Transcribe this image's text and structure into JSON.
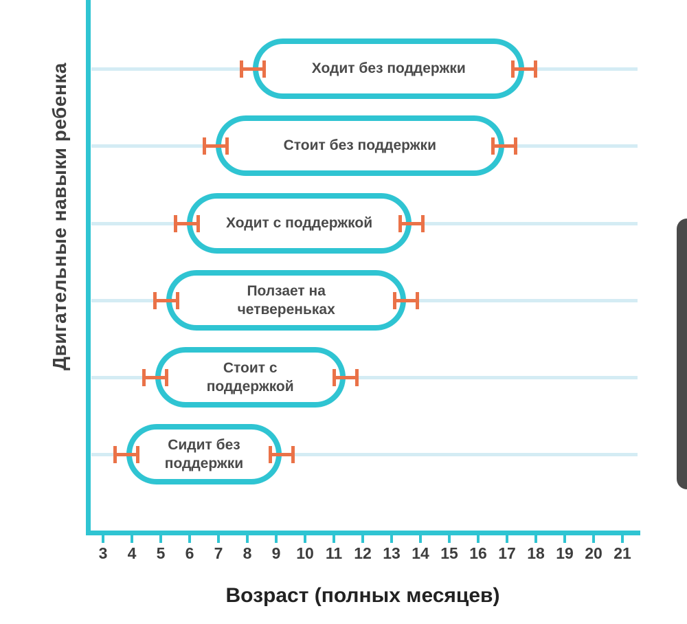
{
  "colors": {
    "axis_teal": "#2fc4d2",
    "pill_border_teal": "#2fc4d2",
    "marker_orange": "#ea7248",
    "gridline_blue": "#d4ecf4",
    "label_gray": "#4a4a4a",
    "axis_title_dark": "#222222",
    "scroll_thumb_gray": "#4a4a4a"
  },
  "chart_data": {
    "type": "bar",
    "subtype": "horizontal milestone range chart with error-bar end markers",
    "title": "",
    "xlabel": "Возраст (полных месяцев)",
    "ylabel": "Двигательные навыки ребенка",
    "xlim": [
      3,
      21
    ],
    "x_ticks": [
      3,
      4,
      5,
      6,
      7,
      8,
      9,
      10,
      11,
      12,
      13,
      14,
      15,
      16,
      17,
      18,
      19,
      20,
      21
    ],
    "grid": "one light horizontal gridline per category row",
    "legend": "none",
    "categories": [
      "Ходит без поддержки",
      "Стоит без поддержки",
      "Ходит с поддержкой",
      "Ползает на четвереньках",
      "Стоит с поддержкой",
      "Сидит без поддержки"
    ],
    "ranges_months": [
      [
        8.2,
        17.6
      ],
      [
        6.9,
        16.9
      ],
      [
        5.9,
        13.7
      ],
      [
        5.2,
        13.5
      ],
      [
        4.8,
        11.4
      ],
      [
        3.8,
        9.2
      ]
    ],
    "skills": [
      {
        "label": "Ходит без поддержки",
        "label_lines": [
          "Ходит без поддержки"
        ],
        "start_month": 8.2,
        "end_month": 17.6
      },
      {
        "label": "Стоит без поддержки",
        "label_lines": [
          "Стоит без поддержки"
        ],
        "start_month": 6.9,
        "end_month": 16.9
      },
      {
        "label": "Ходит с поддержкой",
        "label_lines": [
          "Ходит с поддержкой"
        ],
        "start_month": 5.9,
        "end_month": 13.7
      },
      {
        "label": "Ползает на четвереньках",
        "label_lines": [
          "Ползает на",
          "четвереньках"
        ],
        "start_month": 5.2,
        "end_month": 13.5
      },
      {
        "label": "Стоит с поддержкой",
        "label_lines": [
          "Стоит с",
          "поддержкой"
        ],
        "start_month": 4.8,
        "end_month": 11.4
      },
      {
        "label": "Сидит без поддержки",
        "label_lines": [
          "Сидит без",
          "поддержки"
        ],
        "start_month": 3.8,
        "end_month": 9.2
      }
    ]
  }
}
